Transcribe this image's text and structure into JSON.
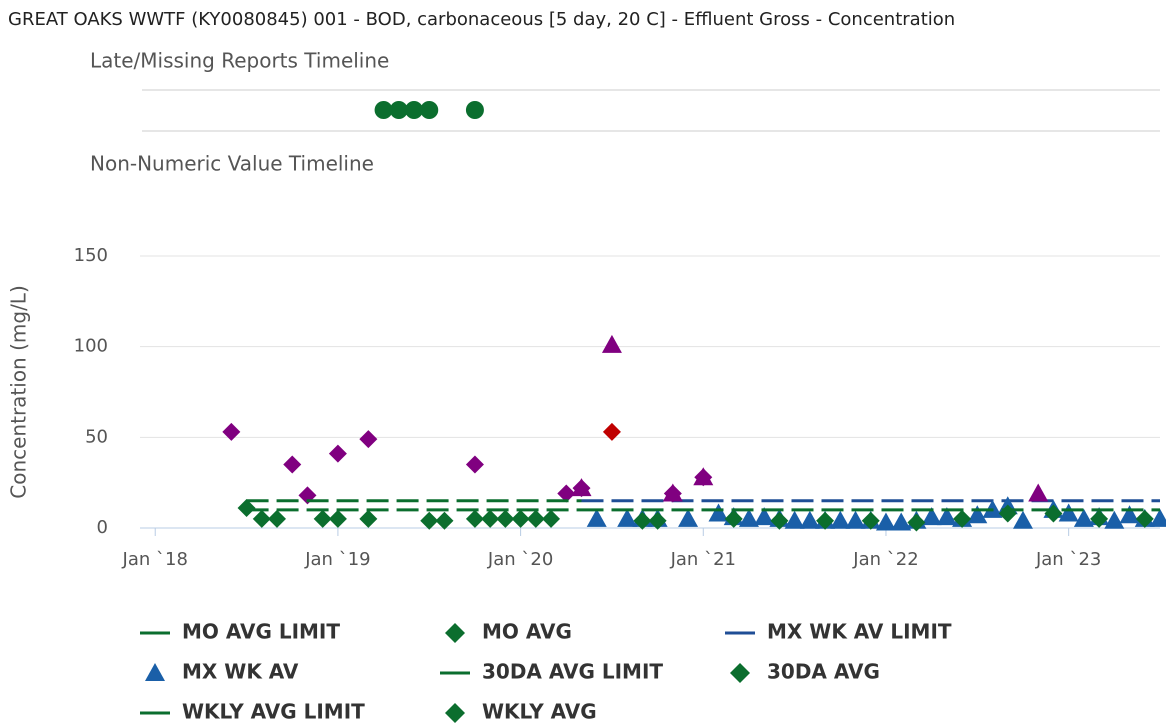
{
  "chart_data": {
    "type": "timeline-scatter",
    "title": "GREAT OAKS WWTF (KY0080845) 001 - BOD, carbonaceous [5 day, 20 C] - Effluent Gross - Concentration",
    "late_missing": {
      "title": "Late/Missing Reports Timeline",
      "color": "#0b6e2e",
      "x": [
        "2019-04",
        "2019-05",
        "2019-06",
        "2019-07",
        "2019-10"
      ]
    },
    "non_numeric": {
      "title": "Non-Numeric Value Timeline"
    },
    "y_label": "Concentration (mg/L)",
    "ylim": [
      0,
      150
    ],
    "yticks": [
      0,
      50,
      100,
      150
    ],
    "xlim": [
      "2017-12",
      "2023-07"
    ],
    "xticks": [
      {
        "value": "2018-01",
        "label": "Jan `18"
      },
      {
        "value": "2019-01",
        "label": "Jan `19"
      },
      {
        "value": "2020-01",
        "label": "Jan `20"
      },
      {
        "value": "2021-01",
        "label": "Jan `21"
      },
      {
        "value": "2022-01",
        "label": "Jan `22"
      },
      {
        "value": "2023-01",
        "label": "Jan `23"
      }
    ],
    "grid": true,
    "series": [
      {
        "name": "MO AVG LIMIT",
        "marker": "line",
        "color": "#0b6e2e",
        "x": [
          "2018-07",
          "2020-05"
        ],
        "values": [
          10,
          10
        ]
      },
      {
        "name": "MO AVG",
        "marker": "diamond",
        "color": "#0b6e2e",
        "x": [
          "2018-07",
          "2018-08",
          "2018-09",
          "2018-10",
          "2018-11",
          "2018-12",
          "2019-01",
          "2019-03",
          "2019-07",
          "2019-08",
          "2019-10",
          "2019-11",
          "2019-12",
          "2020-01",
          "2020-02",
          "2020-03",
          "2020-04"
        ],
        "values": [
          11,
          5,
          5,
          35,
          18,
          5,
          5,
          5,
          4,
          4,
          5,
          5,
          5,
          5,
          5,
          5,
          19
        ],
        "point_colors": [
          "#0b6e2e",
          "#0b6e2e",
          "#0b6e2e",
          "#800080",
          "#800080",
          "#0b6e2e",
          "#0b6e2e",
          "#0b6e2e",
          "#0b6e2e",
          "#0b6e2e",
          "#0b6e2e",
          "#0b6e2e",
          "#0b6e2e",
          "#0b6e2e",
          "#0b6e2e",
          "#0b6e2e",
          "#800080"
        ]
      },
      {
        "name": "MX WK AV LIMIT",
        "marker": "line",
        "color": "#1f4e96",
        "x": [
          "2020-05",
          "2023-07"
        ],
        "values": [
          15,
          15
        ]
      },
      {
        "name": "MX WK AV",
        "marker": "triangle",
        "color": "#1a5fa8",
        "x": [
          "2020-05",
          "2020-06",
          "2020-07",
          "2020-08",
          "2020-09",
          "2020-10",
          "2020-11",
          "2020-12",
          "2021-01",
          "2021-02",
          "2021-03",
          "2021-04",
          "2021-05",
          "2021-06",
          "2021-07",
          "2021-08",
          "2021-09",
          "2021-10",
          "2021-11",
          "2021-12",
          "2022-01",
          "2022-02",
          "2022-03",
          "2022-04",
          "2022-05",
          "2022-06",
          "2022-07",
          "2022-08",
          "2022-09",
          "2022-10",
          "2022-11",
          "2022-12",
          "2023-01",
          "2023-02",
          "2023-03",
          "2023-04",
          "2023-05",
          "2023-06",
          "2023-07"
        ],
        "values": [
          22,
          5,
          101,
          5,
          5,
          5,
          19,
          5,
          28,
          8,
          6,
          5,
          6,
          5,
          4,
          4,
          4,
          4,
          4,
          4,
          3,
          3,
          4,
          6,
          6,
          5,
          7,
          10,
          12,
          4,
          19,
          10,
          8,
          5,
          6,
          4,
          7,
          5,
          5
        ],
        "point_colors": [
          "#800080",
          "#1a5fa8",
          "#800080",
          "#1a5fa8",
          "#1a5fa8",
          "#1a5fa8",
          "#800080",
          "#1a5fa8",
          "#800080",
          "#1a5fa8",
          "#1a5fa8",
          "#1a5fa8",
          "#1a5fa8",
          "#1a5fa8",
          "#1a5fa8",
          "#1a5fa8",
          "#1a5fa8",
          "#1a5fa8",
          "#1a5fa8",
          "#1a5fa8",
          "#1a5fa8",
          "#1a5fa8",
          "#1a5fa8",
          "#1a5fa8",
          "#1a5fa8",
          "#1a5fa8",
          "#1a5fa8",
          "#1a5fa8",
          "#1a5fa8",
          "#1a5fa8",
          "#800080",
          "#1a5fa8",
          "#1a5fa8",
          "#1a5fa8",
          "#1a5fa8",
          "#1a5fa8",
          "#1a5fa8",
          "#1a5fa8",
          "#1a5fa8"
        ]
      },
      {
        "name": "30DA AVG LIMIT",
        "marker": "line",
        "color": "#0b6e2e",
        "x": [
          "2020-05",
          "2023-07"
        ],
        "values": [
          10,
          10
        ]
      },
      {
        "name": "30DA AVG",
        "marker": "diamond",
        "color": "#0b6e2e",
        "x": [
          "2020-05",
          "2020-07",
          "2020-09",
          "2020-10",
          "2020-11",
          "2021-01",
          "2021-03",
          "2021-06",
          "2021-09",
          "2021-12",
          "2022-03",
          "2022-06",
          "2022-09",
          "2022-12",
          "2023-03",
          "2023-06"
        ],
        "values": [
          22,
          53,
          4,
          4,
          19,
          28,
          5,
          4,
          4,
          4,
          3,
          5,
          8,
          8,
          5,
          5
        ],
        "point_colors": [
          "#800080",
          "#c00000",
          "#0b6e2e",
          "#0b6e2e",
          "#800080",
          "#800080",
          "#0b6e2e",
          "#0b6e2e",
          "#0b6e2e",
          "#0b6e2e",
          "#0b6e2e",
          "#0b6e2e",
          "#0b6e2e",
          "#0b6e2e",
          "#0b6e2e",
          "#0b6e2e"
        ]
      },
      {
        "name": "WKLY AVG LIMIT",
        "marker": "line",
        "color": "#0b6e2e",
        "x": [
          "2018-07",
          "2020-05"
        ],
        "values": [
          15,
          15
        ]
      },
      {
        "name": "WKLY AVG",
        "marker": "diamond",
        "color": "#0b6e2e",
        "x": [
          "2018-06",
          "2019-01",
          "2019-03",
          "2019-10"
        ],
        "values": [
          53,
          41,
          49,
          35
        ],
        "point_colors": [
          "#800080",
          "#800080",
          "#800080",
          "#800080"
        ]
      }
    ]
  }
}
